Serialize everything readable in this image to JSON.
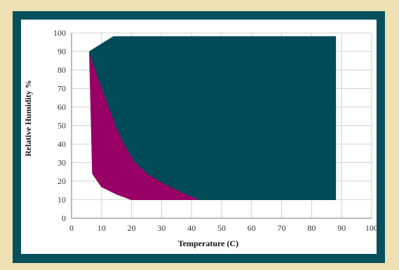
{
  "chart_data": {
    "type": "area",
    "title": "",
    "xlabel": "Temperature (C)",
    "ylabel": "Relative Humidity %",
    "xlim": [
      0,
      100
    ],
    "ylim": [
      0,
      100
    ],
    "x_ticks": [
      0,
      10,
      20,
      30,
      40,
      50,
      60,
      70,
      80,
      90,
      100
    ],
    "y_ticks": [
      0,
      10,
      20,
      30,
      40,
      50,
      60,
      70,
      80,
      90,
      100
    ],
    "grid": true,
    "legend": "none",
    "series": [
      {
        "color": "#004b57",
        "points": [
          [
            6,
            90
          ],
          [
            14,
            98
          ],
          [
            88,
            98
          ],
          [
            88,
            10
          ],
          [
            20,
            10
          ],
          [
            15,
            13
          ],
          [
            10,
            17
          ],
          [
            7,
            24
          ],
          [
            6,
            90
          ]
        ]
      },
      {
        "color": "#990066",
        "points": [
          [
            6,
            88
          ],
          [
            9,
            74
          ],
          [
            12,
            61
          ],
          [
            15,
            48
          ],
          [
            18,
            38
          ],
          [
            21,
            30
          ],
          [
            25,
            24
          ],
          [
            30,
            19
          ],
          [
            35,
            15
          ],
          [
            42,
            10
          ],
          [
            20,
            10
          ],
          [
            15,
            13
          ],
          [
            10,
            17
          ],
          [
            7,
            24
          ],
          [
            6,
            88
          ]
        ]
      }
    ]
  }
}
